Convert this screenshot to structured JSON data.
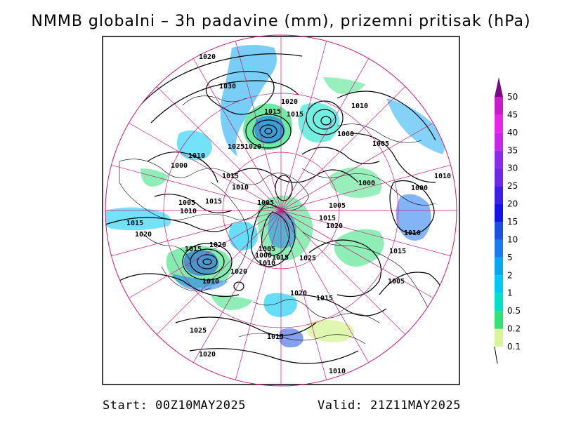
{
  "title": "NMMB globalni – 3h padavine (mm), prizemni pritisak (hPa)",
  "footer": {
    "start": "Start: 00Z10MAY2025",
    "valid": "Valid: 21Z11MAY2025"
  },
  "legend": {
    "levels": [
      "0.1",
      "0.2",
      "0.5",
      "1",
      "2",
      "5",
      "10",
      "15",
      "20",
      "25",
      "30",
      "35",
      "40",
      "45",
      "50"
    ],
    "colors": [
      "#d7f59a",
      "#33e07a",
      "#00e0c8",
      "#00c8f0",
      "#0aa6ee",
      "#1e78ee",
      "#1e50e0",
      "#1414e6",
      "#3c1ee6",
      "#6e28e6",
      "#8c2ce6",
      "#c828e6",
      "#e628e6",
      "#c81ec8",
      "#7a0a82"
    ]
  },
  "isobar_labels": [
    {
      "text": "1020"
    },
    {
      "text": "1030"
    },
    {
      "text": "1020"
    },
    {
      "text": "1015"
    },
    {
      "text": "1015"
    },
    {
      "text": "1010"
    },
    {
      "text": "1000"
    },
    {
      "text": "1005"
    },
    {
      "text": "1025"
    },
    {
      "text": "1020"
    },
    {
      "text": "1010"
    },
    {
      "text": "1000"
    },
    {
      "text": "1015"
    },
    {
      "text": "1010"
    },
    {
      "text": "1000"
    },
    {
      "text": "1000"
    },
    {
      "text": "1010"
    },
    {
      "text": "1005"
    },
    {
      "text": "1015"
    },
    {
      "text": "1005"
    },
    {
      "text": "1010"
    },
    {
      "text": "1005"
    },
    {
      "text": "1015"
    },
    {
      "text": "1020"
    },
    {
      "text": "1015"
    },
    {
      "text": "1020"
    },
    {
      "text": "1020"
    },
    {
      "text": "1010"
    },
    {
      "text": "1005"
    },
    {
      "text": "1000"
    },
    {
      "text": "1010"
    },
    {
      "text": "1015"
    },
    {
      "text": "1025"
    },
    {
      "text": "1015"
    },
    {
      "text": "1020"
    },
    {
      "text": "1010"
    },
    {
      "text": "1005"
    },
    {
      "text": "1025"
    },
    {
      "text": "1020"
    },
    {
      "text": "1015"
    },
    {
      "text": "1015"
    },
    {
      "text": "1010"
    }
  ]
}
